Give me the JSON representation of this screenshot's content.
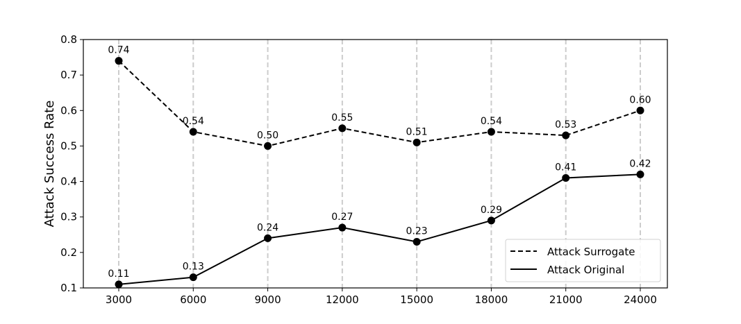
{
  "chart_data": {
    "type": "line",
    "title": "",
    "xlabel": "",
    "ylabel": "Attack Success Rate",
    "categories": [
      "3000",
      "6000",
      "9000",
      "12000",
      "15000",
      "18000",
      "21000",
      "24000"
    ],
    "x": [
      3000,
      6000,
      9000,
      12000,
      15000,
      18000,
      21000,
      24000
    ],
    "ylim": [
      0.1,
      0.8
    ],
    "yticks": [
      "0.1",
      "0.2",
      "0.3",
      "0.4",
      "0.5",
      "0.6",
      "0.7",
      "0.8"
    ],
    "grid": "vertical dashed",
    "legend_position": "lower-right",
    "series": [
      {
        "name": "Attack Surrogate",
        "style": "dashed",
        "color": "#000000",
        "values": [
          0.74,
          0.54,
          0.5,
          0.55,
          0.51,
          0.54,
          0.53,
          0.6
        ],
        "labels": [
          "0.74",
          "0.54",
          "0.50",
          "0.55",
          "0.51",
          "0.54",
          "0.53",
          "0.60"
        ]
      },
      {
        "name": "Attack Original",
        "style": "solid",
        "color": "#000000",
        "values": [
          0.11,
          0.13,
          0.24,
          0.27,
          0.23,
          0.29,
          0.41,
          0.42
        ],
        "labels": [
          "0.11",
          "0.13",
          "0.24",
          "0.27",
          "0.23",
          "0.29",
          "0.41",
          "0.42"
        ]
      }
    ]
  }
}
